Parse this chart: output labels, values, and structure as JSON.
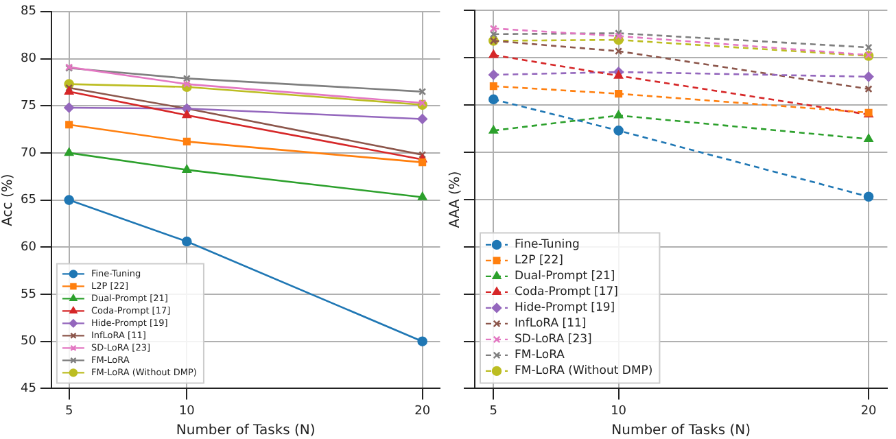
{
  "chart_data": [
    {
      "type": "line",
      "xlabel": "Number of Tasks (N)",
      "ylabel": "Acc (%)",
      "x": [
        5,
        10,
        20
      ],
      "xlim": [
        4.25,
        20.75
      ],
      "xticks": [
        5,
        10,
        20
      ],
      "ylim": [
        45,
        85
      ],
      "yticks": [
        45,
        50,
        55,
        60,
        65,
        70,
        75,
        80,
        85
      ],
      "grid": true,
      "legend": "bottom left",
      "line_style": "solid",
      "series": [
        {
          "name": "Fine-Tuning",
          "color": "#1f77b4",
          "marker": "circle",
          "values": [
            65.0,
            60.6,
            50.0
          ]
        },
        {
          "name": "L2P [22]",
          "color": "#ff7f0e",
          "marker": "square",
          "values": [
            73.0,
            71.2,
            69.0
          ]
        },
        {
          "name": "Dual-Prompt [21]",
          "color": "#2ca02c",
          "marker": "triangle",
          "values": [
            70.0,
            68.2,
            65.3
          ]
        },
        {
          "name": "Coda-Prompt [17]",
          "color": "#d62728",
          "marker": "triangle",
          "values": [
            76.5,
            74.0,
            69.3
          ]
        },
        {
          "name": "Hide-Prompt [19]",
          "color": "#9467bd",
          "marker": "diamond",
          "values": [
            74.8,
            74.7,
            73.6
          ]
        },
        {
          "name": "InfLoRA [11]",
          "color": "#8c564b",
          "marker": "cross",
          "values": [
            76.9,
            74.7,
            69.8
          ]
        },
        {
          "name": "SD-LoRA [23]",
          "color": "#e377c2",
          "marker": "cross",
          "values": [
            79.1,
            77.3,
            75.3
          ]
        },
        {
          "name": "FM-LoRA",
          "color": "#7f7f7f",
          "marker": "cross",
          "values": [
            79.0,
            77.9,
            76.5
          ]
        },
        {
          "name": "FM-LoRA (Without DMP)",
          "color": "#bcbd22",
          "marker": "circle",
          "values": [
            77.3,
            77.0,
            75.1
          ]
        }
      ]
    },
    {
      "type": "line",
      "xlabel": "Number of Tasks (N)",
      "ylabel": "AAA (%)",
      "x": [
        5,
        10,
        20
      ],
      "xlim": [
        4.25,
        20.75
      ],
      "xticks": [
        5,
        10,
        20
      ],
      "ylim": [
        45,
        85
      ],
      "yticks": [
        45,
        50,
        55,
        60,
        65,
        70,
        75,
        80,
        85
      ],
      "tick_labels": "x",
      "grid": true,
      "legend": "bottom left",
      "line_style": "dashed",
      "series": [
        {
          "name": "Fine-Tuning",
          "color": "#1f77b4",
          "marker": "circle",
          "values": [
            75.6,
            72.3,
            65.3
          ]
        },
        {
          "name": "L2P [22]",
          "color": "#ff7f0e",
          "marker": "square",
          "values": [
            77.0,
            76.2,
            74.2
          ]
        },
        {
          "name": "Dual-Prompt [21]",
          "color": "#2ca02c",
          "marker": "triangle",
          "values": [
            72.3,
            73.9,
            71.4
          ]
        },
        {
          "name": "Coda-Prompt [17]",
          "color": "#d62728",
          "marker": "triangle",
          "values": [
            80.3,
            78.1,
            74.0
          ]
        },
        {
          "name": "Hide-Prompt [19]",
          "color": "#9467bd",
          "marker": "diamond",
          "values": [
            78.2,
            78.5,
            78.0
          ]
        },
        {
          "name": "InfLoRA [11]",
          "color": "#8c564b",
          "marker": "cross",
          "values": [
            81.8,
            80.7,
            76.7
          ]
        },
        {
          "name": "SD-LoRA [23]",
          "color": "#e377c2",
          "marker": "cross",
          "values": [
            83.1,
            82.3,
            80.3
          ]
        },
        {
          "name": "FM-LoRA",
          "color": "#7f7f7f",
          "marker": "cross",
          "values": [
            82.5,
            82.6,
            81.1
          ]
        },
        {
          "name": "FM-LoRA (Without DMP)",
          "color": "#bcbd22",
          "marker": "circle",
          "values": [
            81.8,
            81.9,
            80.2
          ]
        }
      ]
    }
  ]
}
